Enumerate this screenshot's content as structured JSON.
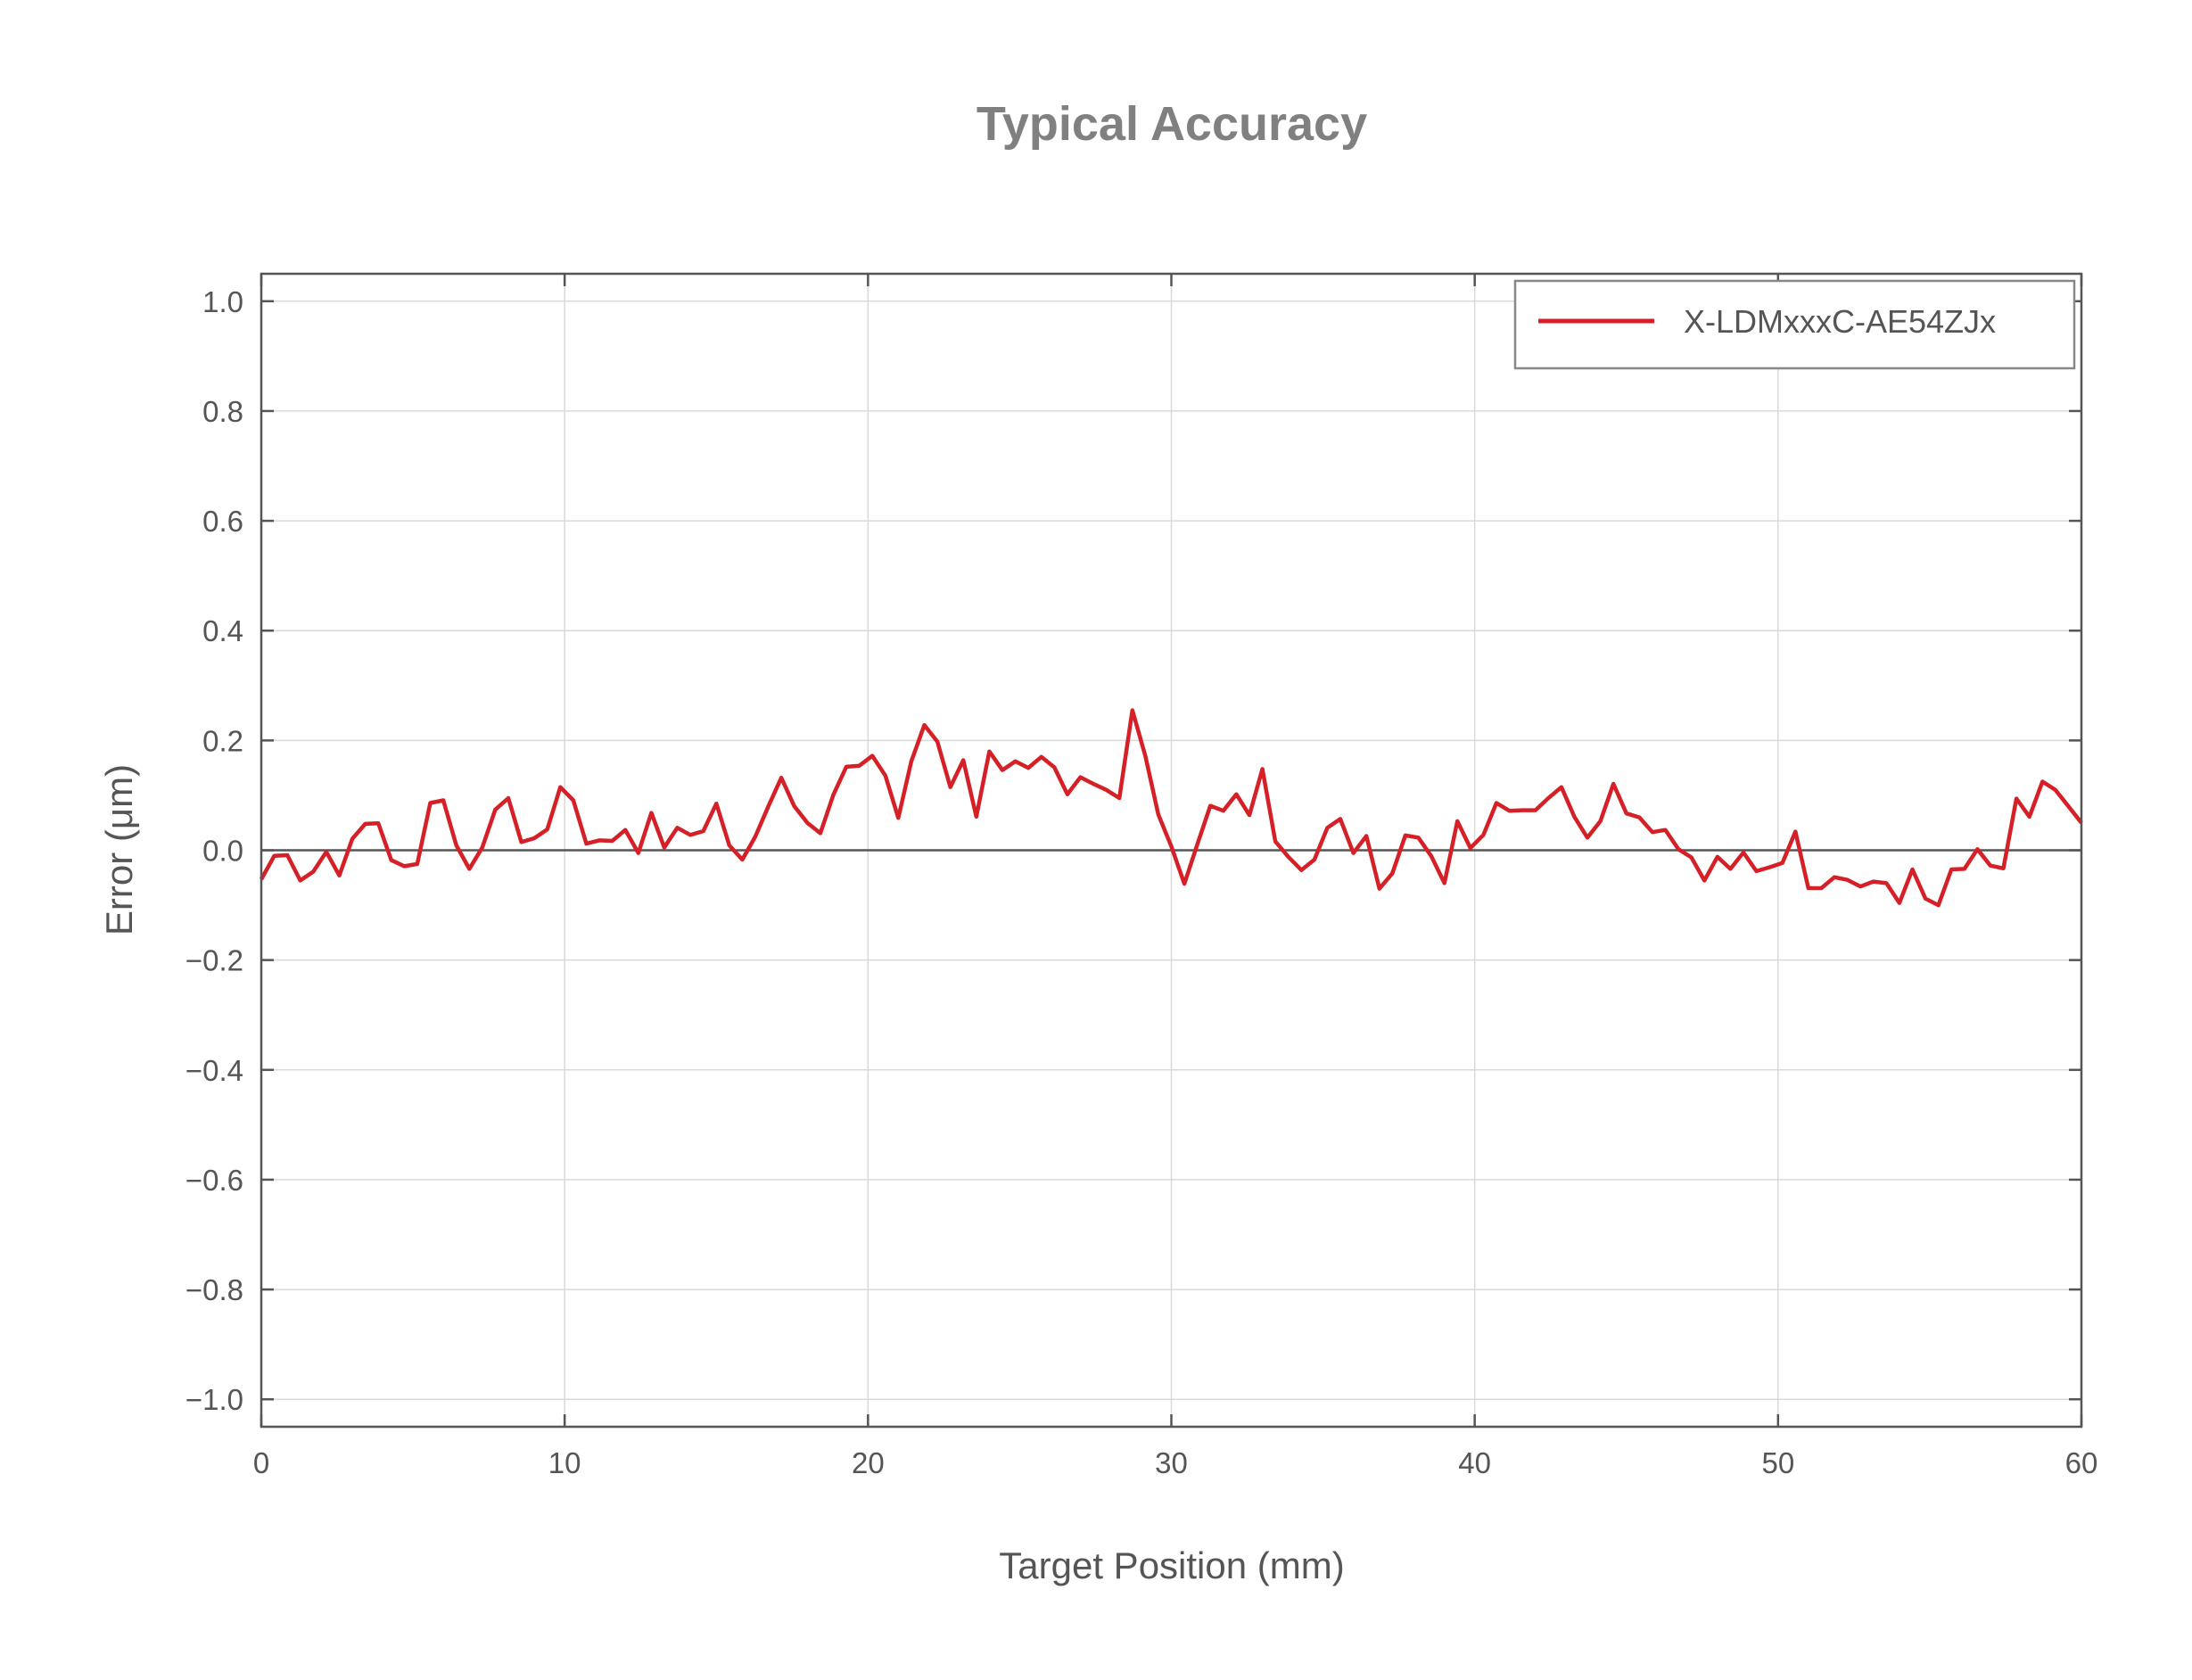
{
  "chart_data": {
    "type": "line",
    "title": "Typical Accuracy",
    "xlabel": "Target Position (mm)",
    "ylabel": "Error (μm)",
    "xlim": [
      0,
      60
    ],
    "ylim": [
      -1.05,
      1.05
    ],
    "xticks": [
      "0",
      "10",
      "20",
      "30",
      "40",
      "50",
      "60"
    ],
    "yticks": [
      "1.0",
      "0.8",
      "0.6",
      "0.4",
      "0.2",
      "0.0",
      "−0.2",
      "−0.4",
      "−0.6",
      "−0.8",
      "−1.0"
    ],
    "grid": true,
    "legend_position": "top-right",
    "zero_line": true,
    "series": [
      {
        "name": "X-LDMxxxC-AE54ZJx",
        "color": "#d62028",
        "x_start": 0,
        "x_end": 60,
        "values": [
          -0.053,
          -0.01,
          -0.009,
          -0.055,
          -0.039,
          -0.003,
          -0.046,
          0.021,
          0.048,
          0.049,
          -0.018,
          -0.029,
          -0.025,
          0.086,
          0.091,
          0.009,
          -0.034,
          0.005,
          0.074,
          0.095,
          0.015,
          0.022,
          0.038,
          0.115,
          0.091,
          0.012,
          0.018,
          0.017,
          0.037,
          -0.005,
          0.068,
          0.005,
          0.041,
          0.028,
          0.035,
          0.085,
          0.009,
          -0.017,
          0.025,
          0.08,
          0.132,
          0.08,
          0.05,
          0.031,
          0.101,
          0.152,
          0.154,
          0.172,
          0.136,
          0.059,
          0.162,
          0.228,
          0.198,
          0.115,
          0.164,
          0.061,
          0.18,
          0.146,
          0.162,
          0.15,
          0.17,
          0.151,
          0.102,
          0.133,
          0.121,
          0.11,
          0.095,
          0.255,
          0.172,
          0.065,
          0.007,
          -0.061,
          0.011,
          0.081,
          0.072,
          0.102,
          0.064,
          0.148,
          0.016,
          -0.012,
          -0.036,
          -0.017,
          0.041,
          0.057,
          -0.005,
          0.026,
          -0.07,
          -0.042,
          0.027,
          0.023,
          -0.011,
          -0.06,
          0.053,
          0.004,
          0.028,
          0.086,
          0.072,
          0.073,
          0.073,
          0.095,
          0.115,
          0.061,
          0.023,
          0.053,
          0.121,
          0.067,
          0.06,
          0.033,
          0.037,
          0.002,
          -0.013,
          -0.055,
          -0.012,
          -0.034,
          -0.004,
          -0.038,
          -0.031,
          -0.023,
          0.034,
          -0.069,
          -0.069,
          -0.049,
          -0.054,
          -0.066,
          -0.057,
          -0.06,
          -0.096,
          -0.035,
          -0.088,
          -0.1,
          -0.035,
          -0.034,
          0.002,
          -0.028,
          -0.033,
          0.094,
          0.061,
          0.125,
          0.11,
          0.08,
          0.05
        ]
      }
    ]
  }
}
